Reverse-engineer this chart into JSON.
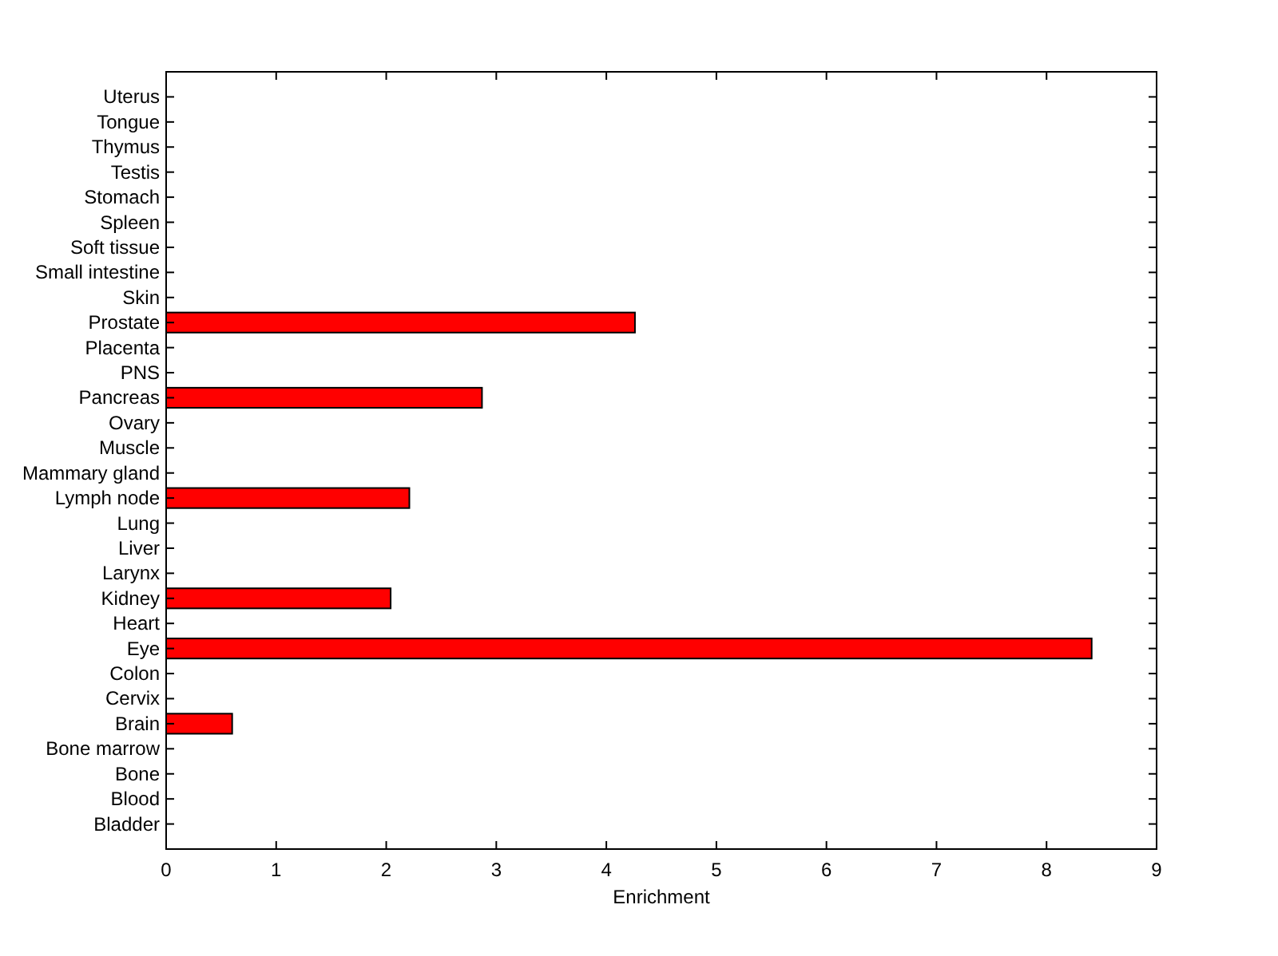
{
  "chart_data": {
    "type": "bar",
    "orientation": "horizontal",
    "categories": [
      "Uterus",
      "Tongue",
      "Thymus",
      "Testis",
      "Stomach",
      "Spleen",
      "Soft tissue",
      "Small intestine",
      "Skin",
      "Prostate",
      "Placenta",
      "PNS",
      "Pancreas",
      "Ovary",
      "Muscle",
      "Mammary gland",
      "Lymph node",
      "Lung",
      "Liver",
      "Larynx",
      "Kidney",
      "Heart",
      "Eye",
      "Colon",
      "Cervix",
      "Brain",
      "Bone marrow",
      "Bone",
      "Blood",
      "Bladder"
    ],
    "values": [
      0,
      0,
      0,
      0,
      0,
      0,
      0,
      0,
      0,
      4.26,
      0,
      0,
      2.87,
      0,
      0,
      0,
      2.21,
      0,
      0,
      0,
      2.04,
      0,
      8.41,
      0,
      0,
      0.6,
      0,
      0,
      0,
      0
    ],
    "color": "#ff0000",
    "xlim": [
      0,
      9
    ],
    "xticks": [
      0,
      1,
      2,
      3,
      4,
      5,
      6,
      7,
      8,
      9
    ],
    "xlabel": "Enrichment"
  }
}
